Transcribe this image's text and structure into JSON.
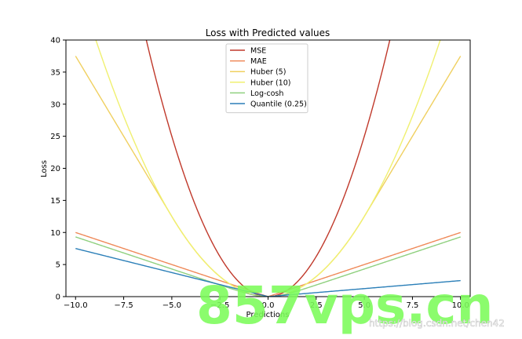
{
  "chart_data": {
    "type": "line",
    "title": "Loss with Predicted values",
    "xlabel": "Predictions",
    "ylabel": "Loss",
    "xlim": [
      -10.5,
      10.5
    ],
    "ylim": [
      0,
      40
    ],
    "x_ticks": [
      -10.0,
      -7.5,
      -5.0,
      -2.5,
      0.0,
      2.5,
      5.0,
      7.5,
      10.0
    ],
    "x_tick_labels": [
      "−10.0",
      "−7.5",
      "−5.0",
      "−2.5",
      "0.0",
      "2.5",
      "5.0",
      "7.5",
      "10.0"
    ],
    "y_ticks": [
      0,
      5,
      10,
      15,
      20,
      25,
      30,
      35,
      40
    ],
    "y_tick_labels": [
      "0",
      "5",
      "10",
      "15",
      "20",
      "25",
      "30",
      "35",
      "40"
    ],
    "grid": false,
    "legend_position": "top-center",
    "x_range": [
      -10,
      10
    ],
    "series": [
      {
        "name": "MSE",
        "function": "mse",
        "color": "#c0392b"
      },
      {
        "name": "MAE",
        "function": "mae",
        "color": "#ef8a5a"
      },
      {
        "name": "Huber (5)",
        "function": "huber",
        "delta": 5,
        "color": "#f0d060"
      },
      {
        "name": "Huber (10)",
        "function": "huber",
        "delta": 10,
        "color": "#f0f070"
      },
      {
        "name": "Log-cosh",
        "function": "logcosh",
        "color": "#8fd07f"
      },
      {
        "name": "Quantile (0.25)",
        "function": "quantile",
        "q": 0.25,
        "color": "#2b7fb8"
      }
    ]
  },
  "watermark": {
    "logo_text": "857vps.cn",
    "url_text": "https://blog.csdn.net/chen42"
  }
}
